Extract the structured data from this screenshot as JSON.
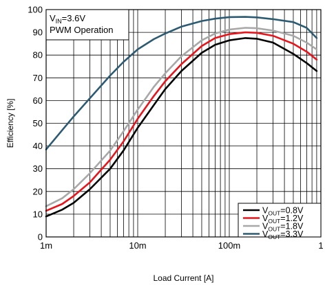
{
  "chart_data": {
    "type": "line",
    "xlabel": "Load Current [A]",
    "ylabel": "Efficiency [%]",
    "xscale": "log",
    "xlim": [
      0.001,
      1
    ],
    "ylim": [
      0,
      100
    ],
    "grid": true,
    "legend_position": "bottom-right",
    "x_ticks": [
      {
        "value": 0.001,
        "label": "1m"
      },
      {
        "value": 0.01,
        "label": "10m"
      },
      {
        "value": 0.1,
        "label": "100m"
      },
      {
        "value": 1,
        "label": "1"
      }
    ],
    "y_ticks": [
      0,
      10,
      20,
      30,
      40,
      50,
      60,
      70,
      80,
      90,
      100
    ],
    "annotation": {
      "line1_main": "V",
      "line1_sub": "IN",
      "line1_rest": "=3.6V",
      "line2": "PWM Operation"
    },
    "series": [
      {
        "name_main": "V",
        "name_sub": "OUT",
        "name_rest": "=0.8V",
        "color": "#000000",
        "points": [
          [
            0.001,
            9
          ],
          [
            0.0015,
            12
          ],
          [
            0.002,
            15
          ],
          [
            0.003,
            21
          ],
          [
            0.005,
            30
          ],
          [
            0.007,
            38
          ],
          [
            0.01,
            48
          ],
          [
            0.015,
            58
          ],
          [
            0.02,
            65
          ],
          [
            0.03,
            73
          ],
          [
            0.05,
            81
          ],
          [
            0.07,
            84.5
          ],
          [
            0.1,
            86.5
          ],
          [
            0.15,
            87.5
          ],
          [
            0.2,
            87.2
          ],
          [
            0.3,
            85.5
          ],
          [
            0.5,
            80.5
          ],
          [
            0.7,
            76.5
          ],
          [
            0.9,
            73
          ]
        ]
      },
      {
        "name_main": "V",
        "name_sub": "OUT",
        "name_rest": "=1.2V",
        "color": "#e8141c",
        "points": [
          [
            0.001,
            11.5
          ],
          [
            0.0015,
            14.5
          ],
          [
            0.002,
            18
          ],
          [
            0.003,
            24
          ],
          [
            0.005,
            34
          ],
          [
            0.007,
            42
          ],
          [
            0.01,
            52
          ],
          [
            0.015,
            62
          ],
          [
            0.02,
            68.5
          ],
          [
            0.03,
            76
          ],
          [
            0.05,
            84
          ],
          [
            0.07,
            87.5
          ],
          [
            0.1,
            89.2
          ],
          [
            0.15,
            90
          ],
          [
            0.2,
            89.8
          ],
          [
            0.3,
            88.5
          ],
          [
            0.5,
            85
          ],
          [
            0.7,
            81.5
          ],
          [
            0.9,
            78
          ]
        ]
      },
      {
        "name_main": "V",
        "name_sub": "OUT",
        "name_rest": "=1.8V",
        "color": "#a8a8a8",
        "points": [
          [
            0.001,
            13.5
          ],
          [
            0.0015,
            17
          ],
          [
            0.002,
            21
          ],
          [
            0.003,
            28
          ],
          [
            0.005,
            38
          ],
          [
            0.007,
            46.5
          ],
          [
            0.01,
            56
          ],
          [
            0.015,
            66
          ],
          [
            0.02,
            72
          ],
          [
            0.03,
            79.5
          ],
          [
            0.05,
            86.5
          ],
          [
            0.07,
            89.5
          ],
          [
            0.1,
            91.2
          ],
          [
            0.15,
            92
          ],
          [
            0.2,
            91.8
          ],
          [
            0.3,
            90.8
          ],
          [
            0.5,
            88.5
          ],
          [
            0.7,
            85.5
          ],
          [
            0.9,
            82.5
          ]
        ]
      },
      {
        "name_main": "V",
        "name_sub": "OUT",
        "name_rest": "=3.3V",
        "color": "#2c5a73",
        "points": [
          [
            0.001,
            38.5
          ],
          [
            0.0015,
            47
          ],
          [
            0.002,
            53
          ],
          [
            0.003,
            61
          ],
          [
            0.005,
            71
          ],
          [
            0.007,
            77
          ],
          [
            0.01,
            82.5
          ],
          [
            0.015,
            87
          ],
          [
            0.02,
            89.5
          ],
          [
            0.03,
            92.5
          ],
          [
            0.05,
            95
          ],
          [
            0.07,
            96
          ],
          [
            0.1,
            96.7
          ],
          [
            0.15,
            96.8
          ],
          [
            0.2,
            96.6
          ],
          [
            0.3,
            95.8
          ],
          [
            0.5,
            94.5
          ],
          [
            0.7,
            92
          ],
          [
            0.9,
            87.5
          ]
        ]
      }
    ]
  }
}
